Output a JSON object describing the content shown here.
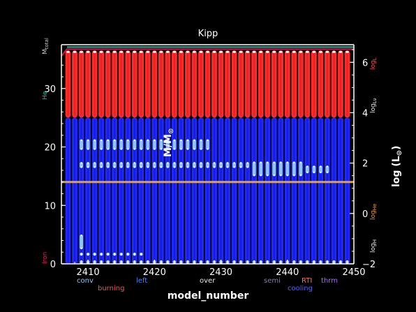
{
  "chart_data": {
    "type": "kippenhahn",
    "title": "Kipp",
    "xlabel": "model_number",
    "ylabel_left": "M/M",
    "ylabel_left_sub": "⊙",
    "ylabel_right": "log (L",
    "ylabel_right_sub": "⊙",
    "ylabel_right_close": ")",
    "xlim": [
      2406,
      2450
    ],
    "ylim_left": [
      0,
      37.5
    ],
    "ylim_right": [
      -2,
      6.7
    ],
    "x_ticks": [
      {
        "value": 2410,
        "label": "2410"
      },
      {
        "value": 2420,
        "label": "2420"
      },
      {
        "value": 2430,
        "label": "2430"
      },
      {
        "value": 2440,
        "label": "2440"
      },
      {
        "value": 2450,
        "label": "2450"
      }
    ],
    "y_left_ticks": [
      {
        "value": 0,
        "label": "0"
      },
      {
        "value": 10,
        "label": "10"
      },
      {
        "value": 20,
        "label": "20"
      },
      {
        "value": 30,
        "label": "30"
      }
    ],
    "y_right_ticks": [
      {
        "value": -2,
        "label": "−2"
      },
      {
        "value": 0,
        "label": "0"
      },
      {
        "value": 2,
        "label": "2"
      },
      {
        "value": 4,
        "label": "4"
      },
      {
        "value": 6,
        "label": "6"
      }
    ],
    "models": {
      "start": 2407,
      "end": 2449,
      "step": 1
    },
    "total_mass": 36.5,
    "red_region": [
      25,
      36.5
    ],
    "blue_region": [
      0,
      25
    ],
    "he_core_mass": 14.0,
    "convective_bands": [
      {
        "x_from": 2409,
        "x_to": 2428,
        "y_from": 19.5,
        "y_to": 21.3
      },
      {
        "x_from": 2409,
        "x_to": 2434,
        "y_from": 16.4,
        "y_to": 17.4
      },
      {
        "x_from": 2435,
        "x_to": 2442,
        "y_from": 15.0,
        "y_to": 17.5
      },
      {
        "x_from": 2443,
        "x_to": 2446,
        "y_from": 15.5,
        "y_to": 16.8
      },
      {
        "x_from": 2409,
        "x_to": 2449,
        "y_from": 0.0,
        "y_to": 0.6
      },
      {
        "x_from": 2409,
        "x_to": 2418,
        "y_from": 1.4,
        "y_to": 1.9
      },
      {
        "x_from": 2409,
        "x_to": 2409,
        "y_from": 2.5,
        "y_to": 5.0
      }
    ],
    "left_side_labels": [
      {
        "text": "M",
        "sub": "total",
        "color": "#c8c8c8"
      },
      {
        "text": "He",
        "color": "#2ab5a0"
      },
      {
        "text": "Iron",
        "color": "#e0245a"
      }
    ],
    "right_side_labels": [
      {
        "text": "log",
        "sub": "L",
        "color": "#ff5050"
      },
      {
        "text": "log",
        "sub": "Lν",
        "color": "#e8e8e8"
      },
      {
        "text": "log",
        "sub": "He",
        "color": "#e8a030"
      },
      {
        "text": "log",
        "sub": "H",
        "color": "#e8e8e8"
      }
    ],
    "legend": [
      {
        "text": "conv",
        "color": "#8ec8f0",
        "row": 1
      },
      {
        "text": "burning",
        "color": "#ff5050",
        "row": 2
      },
      {
        "text": "left",
        "color": "#5080ff",
        "row": 1
      },
      {
        "text": "over",
        "color": "#e8e8e8",
        "row": 1
      },
      {
        "text": "semi",
        "color": "#8080a0",
        "row": 1
      },
      {
        "text": "RTI",
        "color": "#ff7060",
        "row": 1
      },
      {
        "text": "cooling",
        "color": "#5060ff",
        "row": 2
      },
      {
        "text": "thrm",
        "color": "#a070ff",
        "row": 1
      }
    ],
    "colors": {
      "background": "#000000",
      "burning": "#ff2a2a",
      "burning_dark": "#c01818",
      "cooling": "#1e28ff",
      "cooling_dark": "#0a0ab0",
      "conv": "#8ec8f0",
      "he_line": "#e8a030",
      "total_line": "#d0104a",
      "axis": "#ffffff"
    }
  }
}
